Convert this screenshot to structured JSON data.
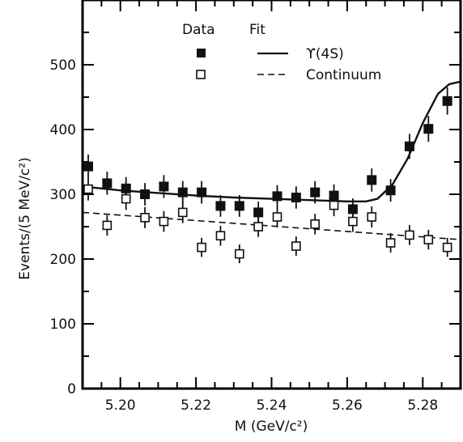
{
  "chart_data": {
    "type": "scatter",
    "title": "",
    "xlabel": "M (GeV/c²)",
    "ylabel": "Events/(5 MeV/c²)",
    "xlim": [
      5.19,
      5.29
    ],
    "ylim": [
      0,
      600
    ],
    "xticks": [
      5.2,
      5.22,
      5.24,
      5.26,
      5.28
    ],
    "xtick_labels": [
      "5.20",
      "5.22",
      "5.24",
      "5.26",
      "5.28"
    ],
    "yticks": [
      0,
      100,
      200,
      300,
      400,
      500
    ],
    "ytick_labels": [
      "0",
      "100",
      "200",
      "300",
      "400",
      "500"
    ],
    "legend": {
      "data_header": "Data",
      "fit_header": "Fit",
      "fit_labels": [
        "ϒ(4S)",
        "Continuum"
      ]
    },
    "series": [
      {
        "marker": "filled-square",
        "x": [
          5.1915,
          5.1965,
          5.2015,
          5.2065,
          5.2115,
          5.2165,
          5.2215,
          5.2265,
          5.2315,
          5.2365,
          5.2415,
          5.2465,
          5.2515,
          5.2565,
          5.2615,
          5.2665,
          5.2715,
          5.2765,
          5.2815,
          5.2865
        ],
        "y": [
          343,
          317,
          309,
          300,
          312,
          303,
          303,
          282,
          282,
          272,
          297,
          295,
          303,
          298,
          277,
          322,
          306,
          374,
          401,
          444
        ]
      },
      {
        "marker": "open-square",
        "x": [
          5.1915,
          5.1965,
          5.2015,
          5.2065,
          5.2115,
          5.2165,
          5.2215,
          5.2265,
          5.2315,
          5.2365,
          5.2415,
          5.2465,
          5.2515,
          5.2565,
          5.2615,
          5.2665,
          5.2715,
          5.2765,
          5.2815,
          5.2865
        ],
        "y": [
          308,
          252,
          293,
          264,
          258,
          272,
          218,
          236,
          208,
          250,
          265,
          220,
          254,
          283,
          258,
          265,
          225,
          237,
          230,
          218
        ]
      }
    ],
    "fits": [
      {
        "name": "ϒ(4S)",
        "style": "solid",
        "x": [
          5.19,
          5.2,
          5.21,
          5.22,
          5.23,
          5.24,
          5.25,
          5.26,
          5.265,
          5.268,
          5.272,
          5.276,
          5.28,
          5.284,
          5.287,
          5.29
        ],
        "y": [
          312,
          306,
          302,
          298,
          295,
          293,
          291,
          289,
          289,
          293,
          315,
          355,
          410,
          455,
          470,
          474
        ]
      },
      {
        "name": "Continuum",
        "style": "dashed",
        "x": [
          5.19,
          5.29
        ],
        "y": [
          272,
          230
        ]
      }
    ]
  }
}
